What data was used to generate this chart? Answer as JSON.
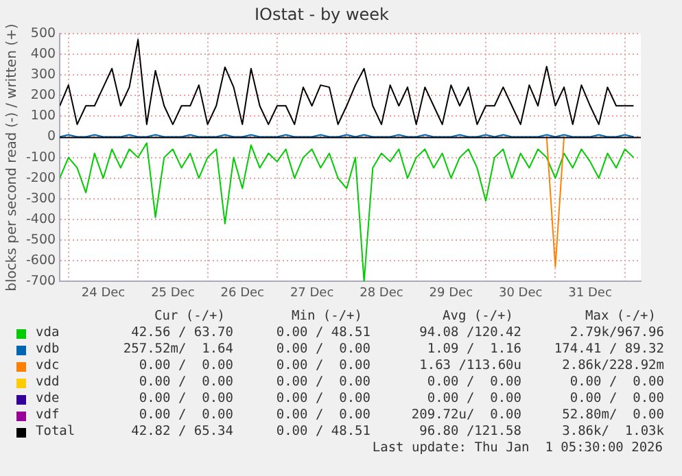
{
  "chart_data": {
    "type": "line",
    "title": "IOstat - by week",
    "ylabel": "blocks per second read (-) / written (+)",
    "x": [
      "2025-12-23T21:00",
      "2025-12-24T00:00",
      "2025-12-24T03:00",
      "2025-12-24T06:00",
      "2025-12-24T09:00",
      "2025-12-24T12:00",
      "2025-12-24T15:00",
      "2025-12-24T18:00",
      "2025-12-24T21:00",
      "2025-12-25T00:00",
      "2025-12-25T03:00",
      "2025-12-25T06:00",
      "2025-12-25T09:00",
      "2025-12-25T12:00",
      "2025-12-25T15:00",
      "2025-12-25T18:00",
      "2025-12-25T21:00",
      "2025-12-26T00:00",
      "2025-12-26T03:00",
      "2025-12-26T06:00",
      "2025-12-26T09:00",
      "2025-12-26T12:00",
      "2025-12-26T15:00",
      "2025-12-26T18:00",
      "2025-12-26T21:00",
      "2025-12-27T00:00",
      "2025-12-27T03:00",
      "2025-12-27T06:00",
      "2025-12-27T09:00",
      "2025-12-27T12:00",
      "2025-12-27T15:00",
      "2025-12-27T18:00",
      "2025-12-27T21:00",
      "2025-12-28T00:00",
      "2025-12-28T03:00",
      "2025-12-28T06:00",
      "2025-12-28T09:00",
      "2025-12-28T12:00",
      "2025-12-28T15:00",
      "2025-12-28T18:00",
      "2025-12-28T21:00",
      "2025-12-29T00:00",
      "2025-12-29T03:00",
      "2025-12-29T06:00",
      "2025-12-29T09:00",
      "2025-12-29T12:00",
      "2025-12-29T15:00",
      "2025-12-29T18:00",
      "2025-12-29T21:00",
      "2025-12-30T00:00",
      "2025-12-30T03:00",
      "2025-12-30T06:00",
      "2025-12-30T09:00",
      "2025-12-30T12:00",
      "2025-12-30T15:00",
      "2025-12-30T18:00",
      "2025-12-30T21:00",
      "2025-12-31T00:00",
      "2025-12-31T03:00",
      "2025-12-31T06:00",
      "2025-12-31T09:00",
      "2025-12-31T12:00",
      "2025-12-31T15:00",
      "2025-12-31T18:00",
      "2025-12-31T21:00",
      "2026-01-01T00:00",
      "2026-01-01T03:00"
    ],
    "series": [
      {
        "name": "vda",
        "color": "#00cc00",
        "values": [
          -200,
          -100,
          -150,
          -270,
          -80,
          -200,
          -60,
          -150,
          -60,
          -100,
          -30,
          -390,
          -100,
          -60,
          -150,
          -80,
          -200,
          -100,
          -60,
          -420,
          -100,
          -250,
          -40,
          -150,
          -80,
          -120,
          -60,
          -200,
          -100,
          -60,
          -150,
          -80,
          -200,
          -250,
          -100,
          -700,
          -150,
          -80,
          -120,
          -60,
          -200,
          -100,
          -60,
          -150,
          -80,
          -200,
          -100,
          -60,
          -150,
          -310,
          -100,
          -60,
          -200,
          -80,
          -150,
          -60,
          -100,
          -200,
          -80,
          -150,
          -60,
          -120,
          -200,
          -80,
          -150,
          -60,
          -100
        ]
      },
      {
        "name": "vdb",
        "color": "#0066b3",
        "values": [
          0,
          10,
          0,
          0,
          10,
          0,
          0,
          0,
          10,
          0,
          0,
          10,
          0,
          0,
          0,
          10,
          0,
          0,
          0,
          10,
          0,
          0,
          10,
          0,
          0,
          0,
          10,
          0,
          0,
          0,
          10,
          0,
          0,
          10,
          0,
          10,
          0,
          0,
          0,
          10,
          0,
          0,
          10,
          0,
          0,
          0,
          10,
          0,
          0,
          10,
          0,
          10,
          0,
          0,
          0,
          0,
          10,
          0,
          10,
          0,
          0,
          0,
          10,
          0,
          0,
          10,
          0
        ]
      },
      {
        "name": "vdc",
        "color": "#ff8000",
        "values": [
          null,
          null,
          null,
          null,
          null,
          null,
          null,
          null,
          null,
          null,
          null,
          null,
          null,
          null,
          null,
          null,
          null,
          null,
          null,
          null,
          null,
          null,
          null,
          null,
          null,
          null,
          null,
          null,
          null,
          null,
          null,
          null,
          null,
          null,
          null,
          null,
          null,
          null,
          null,
          null,
          null,
          null,
          null,
          null,
          null,
          null,
          null,
          null,
          null,
          null,
          null,
          null,
          null,
          null,
          null,
          null,
          0,
          -630,
          0,
          null,
          null,
          null,
          null,
          null,
          null,
          null,
          null
        ]
      },
      {
        "name": "vdd",
        "color": "#ffcc00",
        "values": [
          null,
          null,
          null,
          null,
          null,
          null,
          null,
          null,
          null,
          null,
          null,
          null,
          null,
          null,
          null,
          null,
          null,
          null,
          null,
          null,
          null,
          null,
          null,
          null,
          null,
          null,
          null,
          null,
          null,
          null,
          null,
          null,
          null,
          null,
          null,
          null,
          null,
          null,
          null,
          null,
          null,
          null,
          null,
          null,
          null,
          null,
          null,
          null,
          null,
          null,
          null,
          null,
          null,
          null,
          null,
          null,
          null,
          null,
          null,
          null,
          null,
          null,
          null,
          null,
          null,
          null,
          null
        ]
      },
      {
        "name": "vde",
        "color": "#330099",
        "values": [
          null,
          null,
          null,
          null,
          null,
          null,
          null,
          null,
          null,
          null,
          null,
          null,
          null,
          null,
          null,
          null,
          null,
          null,
          null,
          null,
          null,
          null,
          null,
          null,
          null,
          null,
          null,
          null,
          null,
          null,
          null,
          null,
          null,
          null,
          null,
          null,
          null,
          null,
          null,
          null,
          null,
          null,
          null,
          null,
          null,
          null,
          null,
          null,
          null,
          null,
          null,
          null,
          null,
          null,
          null,
          null,
          null,
          null,
          null,
          null,
          null,
          null,
          null,
          null,
          null,
          null,
          null
        ]
      },
      {
        "name": "vdf",
        "color": "#990099",
        "values": [
          null,
          null,
          null,
          null,
          null,
          null,
          null,
          null,
          null,
          null,
          null,
          null,
          null,
          null,
          null,
          null,
          null,
          null,
          null,
          null,
          null,
          null,
          null,
          null,
          null,
          null,
          null,
          null,
          null,
          null,
          null,
          null,
          null,
          null,
          null,
          null,
          null,
          null,
          null,
          null,
          null,
          null,
          null,
          null,
          null,
          null,
          null,
          null,
          null,
          null,
          null,
          null,
          null,
          null,
          null,
          null,
          null,
          null,
          null,
          null,
          null,
          null,
          null,
          null,
          null,
          null,
          null
        ]
      },
      {
        "name": "Total",
        "color": "#000000",
        "values": [
          150,
          250,
          60,
          150,
          150,
          240,
          330,
          150,
          240,
          470,
          60,
          320,
          150,
          60,
          150,
          150,
          250,
          60,
          150,
          337,
          240,
          60,
          330,
          150,
          60,
          150,
          150,
          60,
          240,
          150,
          250,
          240,
          60,
          150,
          250,
          330,
          150,
          60,
          250,
          150,
          240,
          60,
          240,
          150,
          60,
          250,
          150,
          240,
          60,
          150,
          150,
          240,
          150,
          60,
          250,
          150,
          340,
          150,
          240,
          60,
          250,
          150,
          60,
          240,
          150,
          150,
          150
        ]
      }
    ],
    "xlim": [
      "2025-12-23T21:00",
      "2026-01-01T05:30"
    ],
    "xticks": [
      {
        "value": "2025-12-24T00:00",
        "label": null
      },
      {
        "value": "2025-12-24T12:00",
        "label": "24 Dec"
      },
      {
        "value": "2025-12-25T00:00",
        "label": null
      },
      {
        "value": "2025-12-25T12:00",
        "label": "25 Dec"
      },
      {
        "value": "2025-12-26T00:00",
        "label": null
      },
      {
        "value": "2025-12-26T12:00",
        "label": "26 Dec"
      },
      {
        "value": "2025-12-27T00:00",
        "label": null
      },
      {
        "value": "2025-12-27T12:00",
        "label": "27 Dec"
      },
      {
        "value": "2025-12-28T00:00",
        "label": null
      },
      {
        "value": "2025-12-28T12:00",
        "label": "28 Dec"
      },
      {
        "value": "2025-12-29T00:00",
        "label": null
      },
      {
        "value": "2025-12-29T12:00",
        "label": "29 Dec"
      },
      {
        "value": "2025-12-30T00:00",
        "label": null
      },
      {
        "value": "2025-12-30T12:00",
        "label": "30 Dec"
      },
      {
        "value": "2025-12-31T00:00",
        "label": null
      },
      {
        "value": "2025-12-31T12:00",
        "label": "31 Dec"
      },
      {
        "value": "2026-01-01T00:00",
        "label": null
      }
    ],
    "ylim": [
      -700,
      500
    ],
    "yticks": [
      -700,
      -600,
      -500,
      -400,
      -300,
      -200,
      -100,
      0,
      100,
      200,
      300,
      400,
      500
    ],
    "grid": true,
    "legend": "bottom",
    "marker": "none",
    "line_style": "solid",
    "annotations": [
      "Cur (-/+)",
      "Min (-/+)",
      "Avg (-/+)",
      "Max (-/+)",
      "42.56 / 63.70",
      "0.00 / 48.51",
      "94.08 /120.42",
      "2.79k/967.96",
      "257.52m/  1.64",
      "0.00 /  0.00",
      "1.09 /  1.16",
      "174.41 / 89.32",
      "0.00 /  0.00",
      "0.00 /  0.00",
      "1.63 /113.60u",
      "2.86k/228.92m",
      "0.00 /  0.00",
      "0.00 /  0.00",
      "0.00 /  0.00",
      "0.00 /  0.00",
      "0.00 /  0.00",
      "0.00 /  0.00",
      "0.00 /  0.00",
      "0.00 /  0.00",
      "0.00 /  0.00",
      "0.00 /  0.00",
      "209.72u/  0.00",
      "52.80m/  0.00",
      "42.82 / 65.34",
      "0.00 / 48.51",
      "96.80 /121.58",
      "3.86k/  1.03k",
      "Last update: Thu Jan  1 05:30:00 2026"
    ]
  }
}
